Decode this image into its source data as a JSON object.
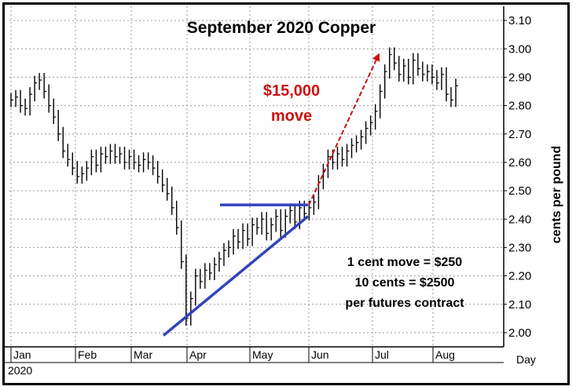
{
  "chart_data": {
    "type": "bar",
    "subtype": "ohlc-price-bars",
    "title": "September 2020 Copper",
    "ylabel": "cents per pound",
    "xlabel": "Day",
    "year_label": "2020",
    "ylim": [
      1.95,
      3.15
    ],
    "yticks": [
      "3.10",
      "3.00",
      "2.90",
      "2.80",
      "2.70",
      "2.60",
      "2.50",
      "2.40",
      "2.30",
      "2.20",
      "2.10",
      "2.00"
    ],
    "y_axis_position": "right",
    "grid": true,
    "months": [
      "Jan",
      "Feb",
      "Mar",
      "Apr",
      "May",
      "Jun",
      "Jul",
      "Aug"
    ],
    "closes": [
      2.82,
      2.83,
      2.8,
      2.79,
      2.84,
      2.88,
      2.89,
      2.85,
      2.8,
      2.76,
      2.7,
      2.64,
      2.61,
      2.58,
      2.55,
      2.56,
      2.58,
      2.62,
      2.59,
      2.63,
      2.62,
      2.64,
      2.62,
      2.63,
      2.6,
      2.62,
      2.6,
      2.59,
      2.61,
      2.6,
      2.58,
      2.55,
      2.52,
      2.49,
      2.44,
      2.37,
      2.25,
      2.05,
      2.12,
      2.2,
      2.18,
      2.22,
      2.21,
      2.24,
      2.26,
      2.29,
      2.3,
      2.34,
      2.32,
      2.36,
      2.33,
      2.38,
      2.37,
      2.4,
      2.35,
      2.38,
      2.41,
      2.36,
      2.41,
      2.43,
      2.39,
      2.44,
      2.42,
      2.44,
      2.46,
      2.53,
      2.57,
      2.62,
      2.6,
      2.63,
      2.61,
      2.64,
      2.66,
      2.67,
      2.69,
      2.72,
      2.74,
      2.78,
      2.85,
      2.92,
      2.98,
      2.95,
      2.91,
      2.94,
      2.9,
      2.96,
      2.93,
      2.91,
      2.92,
      2.9,
      2.88,
      2.91,
      2.84,
      2.82,
      2.87
    ],
    "annotations": [
      {
        "text": "$15,000",
        "color": "#cc1111"
      },
      {
        "text": "move",
        "color": "#cc1111"
      },
      {
        "text": "1 cent move = $250",
        "color": "#000000"
      },
      {
        "text": "10 cents = $2500",
        "color": "#000000"
      },
      {
        "text": "per futures contract",
        "color": "#000000"
      }
    ],
    "trendlines": [
      {
        "name": "resistance",
        "color": "#3344bb",
        "y_from": 2.45,
        "y_to": 2.45
      },
      {
        "name": "rising-support",
        "color": "#3344bb",
        "y_from": 1.99,
        "y_to": 2.41
      }
    ],
    "arrow": {
      "color": "#cc1111",
      "y_from": 2.45,
      "y_to": 2.98
    },
    "colors": {
      "bars": "#000000",
      "grid": "#999999",
      "trend": "#3344bb",
      "arrow": "#cc1111"
    }
  }
}
